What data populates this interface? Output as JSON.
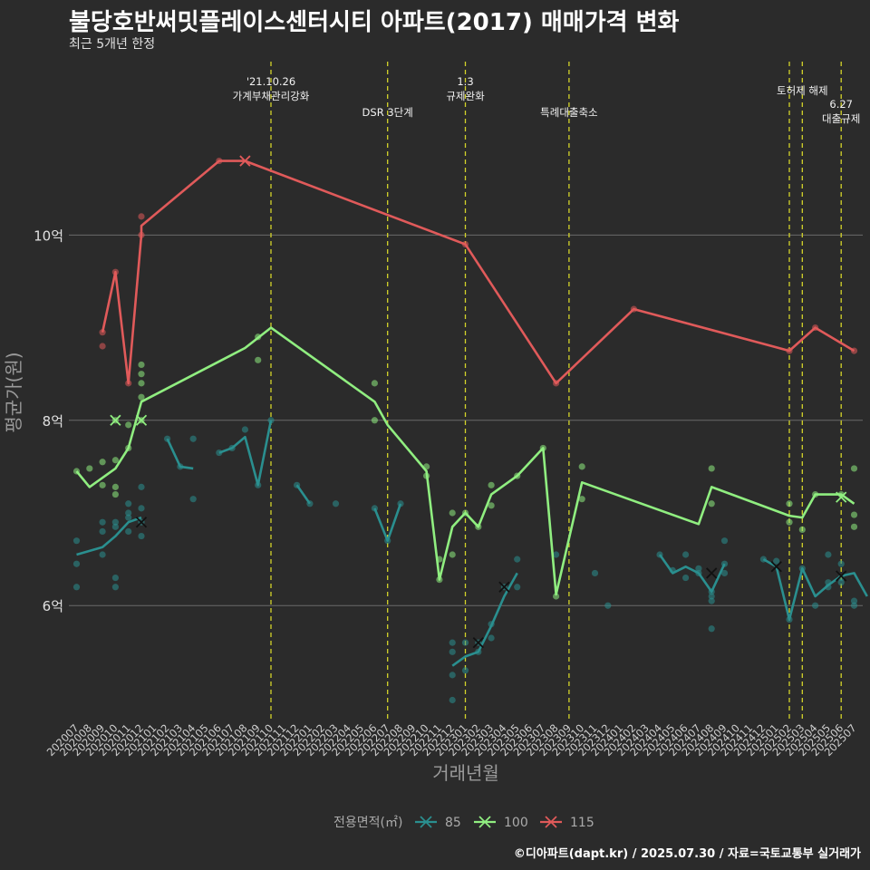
{
  "title": "불당호반써밋플레이스센터시티 아파트(2017) 매매가격 변화",
  "subtitle": "최근 5개년 한정",
  "caption": "©디아파트(dapt.kr) / 2025.07.30 / 자료=국토교통부 실거래가",
  "chart_data": {
    "type": "line",
    "xlabel": "거래년월",
    "ylabel": "평균가(원)",
    "y_unit": "억",
    "ylim": [
      4.75,
      11.95
    ],
    "yticks": [
      6,
      8,
      10
    ],
    "ytick_labels": [
      "6억",
      "8억",
      "10억"
    ],
    "grid": true,
    "legend_title": "전용면적(㎡)",
    "legend_position": "bottom",
    "categories": [
      "202007",
      "202008",
      "202009",
      "202010",
      "202011",
      "202012",
      "202101",
      "202102",
      "202103",
      "202104",
      "202105",
      "202106",
      "202107",
      "202108",
      "202109",
      "202110",
      "202111",
      "202112",
      "202201",
      "202202",
      "202203",
      "202204",
      "202205",
      "202206",
      "202207",
      "202208",
      "202209",
      "202210",
      "202211",
      "202212",
      "202301",
      "202302",
      "202303",
      "202304",
      "202305",
      "202306",
      "202307",
      "202308",
      "202309",
      "202310",
      "202311",
      "202312",
      "202401",
      "202402",
      "202403",
      "202404",
      "202405",
      "202406",
      "202407",
      "202408",
      "202409",
      "202410",
      "202411",
      "202412",
      "202501",
      "202502",
      "202503",
      "202504",
      "202505",
      "202506",
      "202507"
    ],
    "events": [
      {
        "x": "202110",
        "label": "'21.10.26\n가계부채관리강화"
      },
      {
        "x": "202207",
        "label": "DSR 3단계"
      },
      {
        "x": "202301",
        "label": "1.3\n규제완화"
      },
      {
        "x": "202309",
        "label": "특례대출축소"
      },
      {
        "x": "202502",
        "label": ""
      },
      {
        "x": "202503",
        "label": "토허제 해제"
      },
      {
        "x": "202506",
        "label": "6.27\n대출규제"
      }
    ],
    "series": [
      {
        "name": "85",
        "color": "#2a8f8f",
        "line": [
          [
            "202007",
            6.55
          ],
          [
            "202009",
            6.63
          ],
          [
            "202010",
            6.75
          ],
          [
            "202011",
            6.9
          ],
          [
            "202012",
            6.95
          ],
          null,
          [
            "202102",
            7.8
          ],
          [
            "202103",
            7.5
          ],
          [
            "202104",
            7.48
          ],
          null,
          [
            "202106",
            7.65
          ],
          [
            "202107",
            7.7
          ],
          [
            "202108",
            7.82
          ],
          [
            "202109",
            7.3
          ],
          [
            "202110",
            8.0
          ],
          null,
          [
            "202112",
            7.3
          ],
          [
            "202201",
            7.1
          ],
          null,
          [
            "202206",
            7.05
          ],
          [
            "202207",
            6.7
          ],
          [
            "202208",
            7.1
          ],
          null,
          [
            "202212",
            5.35
          ],
          [
            "202301",
            5.45
          ],
          [
            "202302",
            5.5
          ],
          [
            "202303",
            5.78
          ],
          [
            "202304",
            6.1
          ],
          [
            "202305",
            6.35
          ],
          null,
          [
            "202404",
            6.55
          ],
          [
            "202405",
            6.35
          ],
          [
            "202406",
            6.42
          ],
          [
            "202407",
            6.35
          ],
          [
            "202408",
            6.15
          ],
          [
            "202409",
            6.45
          ],
          null,
          [
            "202412",
            6.5
          ],
          [
            "202501",
            6.42
          ],
          [
            "202502",
            5.85
          ],
          [
            "202503",
            6.4
          ],
          [
            "202504",
            6.1
          ],
          [
            "202505",
            6.22
          ],
          [
            "202506",
            6.32
          ],
          [
            "202507",
            6.35
          ],
          [
            "202508",
            6.1
          ]
        ],
        "points": [
          [
            "202007",
            6.7
          ],
          [
            "202007",
            6.45
          ],
          [
            "202007",
            6.2
          ],
          [
            "202009",
            6.55
          ],
          [
            "202009",
            6.8
          ],
          [
            "202009",
            6.9
          ],
          [
            "202010",
            6.3
          ],
          [
            "202010",
            6.2
          ],
          [
            "202010",
            6.85
          ],
          [
            "202010",
            6.9
          ],
          [
            "202011",
            6.95
          ],
          [
            "202011",
            6.8
          ],
          [
            "202011",
            7.1
          ],
          [
            "202011",
            7.0
          ],
          [
            "202012",
            7.05
          ],
          [
            "202012",
            6.9
          ],
          [
            "202012",
            6.75
          ],
          [
            "202012",
            7.28
          ],
          [
            "202102",
            7.8
          ],
          [
            "202103",
            7.5
          ],
          [
            "202104",
            7.8
          ],
          [
            "202104",
            7.15
          ],
          [
            "202106",
            7.65
          ],
          [
            "202107",
            7.7
          ],
          [
            "202108",
            7.9
          ],
          [
            "202109",
            7.3
          ],
          [
            "202110",
            8.0
          ],
          [
            "202112",
            7.3
          ],
          [
            "202201",
            7.1
          ],
          [
            "202203",
            7.1
          ],
          [
            "202206",
            7.05
          ],
          [
            "202207",
            6.7
          ],
          [
            "202208",
            7.1
          ],
          [
            "202212",
            5.6
          ],
          [
            "202212",
            5.5
          ],
          [
            "202212",
            5.25
          ],
          [
            "202212",
            4.98
          ],
          [
            "202301",
            5.6
          ],
          [
            "202301",
            5.3
          ],
          [
            "202302",
            5.6
          ],
          [
            "202302",
            5.5
          ],
          [
            "202303",
            5.8
          ],
          [
            "202303",
            5.65
          ],
          [
            "202304",
            6.2
          ],
          [
            "202305",
            6.5
          ],
          [
            "202305",
            6.2
          ],
          [
            "202308",
            6.55
          ],
          [
            "202311",
            6.35
          ],
          [
            "202312",
            6.0
          ],
          [
            "202404",
            6.55
          ],
          [
            "202405",
            6.38
          ],
          [
            "202406",
            6.55
          ],
          [
            "202406",
            6.3
          ],
          [
            "202407",
            6.4
          ],
          [
            "202407",
            6.35
          ],
          [
            "202408",
            6.05
          ],
          [
            "202408",
            6.1
          ],
          [
            "202408",
            5.75
          ],
          [
            "202408",
            6.15
          ],
          [
            "202409",
            6.7
          ],
          [
            "202409",
            6.45
          ],
          [
            "202409",
            6.35
          ],
          [
            "202412",
            6.5
          ],
          [
            "202501",
            6.48
          ],
          [
            "202502",
            5.85
          ],
          [
            "202503",
            6.4
          ],
          [
            "202504",
            6.0
          ],
          [
            "202505",
            6.55
          ],
          [
            "202505",
            6.25
          ],
          [
            "202505",
            6.2
          ],
          [
            "202506",
            6.45
          ],
          [
            "202506",
            6.3
          ],
          [
            "202506",
            6.25
          ],
          [
            "202507",
            6.05
          ],
          [
            "202507",
            6.0
          ]
        ],
        "markers": [
          [
            "202012",
            6.9
          ],
          [
            "202302",
            5.6
          ],
          [
            "202304",
            6.2
          ],
          [
            "202408",
            6.35
          ],
          [
            "202501",
            6.42
          ],
          [
            "202506",
            6.32
          ]
        ]
      },
      {
        "name": "100",
        "color": "#90ee80",
        "line": [
          [
            "202007",
            7.45
          ],
          [
            "202008",
            7.28
          ],
          [
            "202009",
            7.38
          ],
          [
            "202010",
            7.48
          ],
          [
            "202011",
            7.7
          ],
          [
            "202012",
            8.2
          ],
          [
            "202108",
            8.78
          ],
          [
            "202110",
            9.0
          ],
          [
            "202206",
            8.2
          ],
          [
            "202207",
            7.95
          ],
          [
            "202210",
            7.45
          ],
          [
            "202211",
            6.28
          ],
          [
            "202212",
            6.85
          ],
          [
            "202301",
            7.0
          ],
          [
            "202302",
            6.85
          ],
          [
            "202303",
            7.2
          ],
          [
            "202305",
            7.4
          ],
          [
            "202307",
            7.7
          ],
          [
            "202308",
            6.12
          ],
          [
            "202310",
            7.33
          ],
          [
            "202407",
            6.88
          ],
          [
            "202408",
            7.28
          ],
          [
            "202502",
            6.97
          ],
          [
            "202503",
            6.95
          ],
          [
            "202504",
            7.2
          ],
          [
            "202506",
            7.2
          ],
          [
            "202507",
            7.1
          ]
        ],
        "points": [
          [
            "202007",
            7.45
          ],
          [
            "202008",
            7.48
          ],
          [
            "202009",
            7.55
          ],
          [
            "202009",
            7.3
          ],
          [
            "202010",
            7.57
          ],
          [
            "202010",
            7.28
          ],
          [
            "202010",
            7.2
          ],
          [
            "202010",
            8.0
          ],
          [
            "202011",
            7.7
          ],
          [
            "202011",
            7.95
          ],
          [
            "202012",
            8.6
          ],
          [
            "202012",
            8.5
          ],
          [
            "202012",
            8.4
          ],
          [
            "202012",
            8.25
          ],
          [
            "202012",
            8.0
          ],
          [
            "202109",
            8.9
          ],
          [
            "202109",
            8.65
          ],
          [
            "202206",
            8.4
          ],
          [
            "202206",
            8.0
          ],
          [
            "202210",
            7.5
          ],
          [
            "202210",
            7.4
          ],
          [
            "202211",
            6.5
          ],
          [
            "202211",
            6.28
          ],
          [
            "202212",
            7.0
          ],
          [
            "202212",
            6.55
          ],
          [
            "202301",
            7.0
          ],
          [
            "202302",
            6.85
          ],
          [
            "202303",
            7.3
          ],
          [
            "202303",
            7.08
          ],
          [
            "202305",
            7.4
          ],
          [
            "202307",
            7.7
          ],
          [
            "202308",
            6.1
          ],
          [
            "202310",
            7.5
          ],
          [
            "202310",
            7.15
          ],
          [
            "202408",
            7.48
          ],
          [
            "202408",
            7.1
          ],
          [
            "202502",
            7.1
          ],
          [
            "202502",
            6.9
          ],
          [
            "202503",
            6.82
          ],
          [
            "202504",
            7.2
          ],
          [
            "202506",
            7.2
          ],
          [
            "202507",
            7.48
          ],
          [
            "202507",
            6.98
          ],
          [
            "202507",
            6.85
          ]
        ],
        "markers": [
          [
            "202010",
            8.0
          ],
          [
            "202012",
            8.0
          ],
          [
            "202506",
            7.17
          ]
        ]
      },
      {
        "name": "115",
        "color": "#e05a5a",
        "line": [
          [
            "202009",
            8.95
          ],
          [
            "202010",
            9.6
          ],
          [
            "202011",
            8.4
          ],
          [
            "202012",
            10.0
          ],
          [
            "202012",
            10.1
          ],
          [
            "202106",
            10.8
          ],
          [
            "202108",
            10.8
          ],
          [
            "202301",
            9.9
          ],
          [
            "202308",
            8.4
          ],
          [
            "202402",
            9.2
          ],
          [
            "202502",
            8.75
          ],
          [
            "202504",
            9.0
          ],
          [
            "202507",
            8.75
          ]
        ],
        "points": [
          [
            "202009",
            8.95
          ],
          [
            "202009",
            8.8
          ],
          [
            "202010",
            9.6
          ],
          [
            "202011",
            8.4
          ],
          [
            "202012",
            10.2
          ],
          [
            "202012",
            10.0
          ],
          [
            "202106",
            10.8
          ],
          [
            "202301",
            9.9
          ],
          [
            "202308",
            8.4
          ],
          [
            "202402",
            9.2
          ],
          [
            "202502",
            8.75
          ],
          [
            "202504",
            9.0
          ],
          [
            "202507",
            8.75
          ]
        ],
        "markers": [
          [
            "202108",
            10.8
          ]
        ]
      }
    ]
  }
}
